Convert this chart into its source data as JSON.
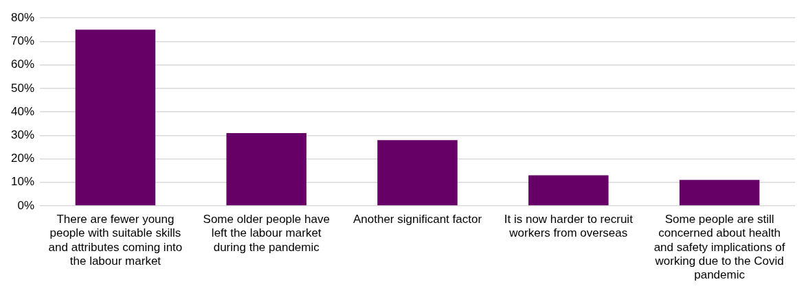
{
  "chart_data": {
    "type": "bar",
    "categories": [
      "There are fewer young people with suitable skills and attributes coming into the labour market",
      "Some older people have left the labour market during the pandemic",
      "Another significant factor",
      "It is now harder to recruit workers from overseas",
      "Some people are still concerned about health and safety implications of working due to the Covid pandemic"
    ],
    "values": [
      75,
      31,
      28,
      13,
      11
    ],
    "color": "#660066",
    "ylim": [
      0,
      80
    ],
    "yticks": [
      {
        "value": 0,
        "label": "0%"
      },
      {
        "value": 10,
        "label": "10%"
      },
      {
        "value": 20,
        "label": "20%"
      },
      {
        "value": 30,
        "label": "30%"
      },
      {
        "value": 40,
        "label": "40%"
      },
      {
        "value": 50,
        "label": "50%"
      },
      {
        "value": 60,
        "label": "60%"
      },
      {
        "value": 70,
        "label": "70%"
      },
      {
        "value": 80,
        "label": "80%"
      }
    ],
    "grid": "y",
    "legend": false
  }
}
